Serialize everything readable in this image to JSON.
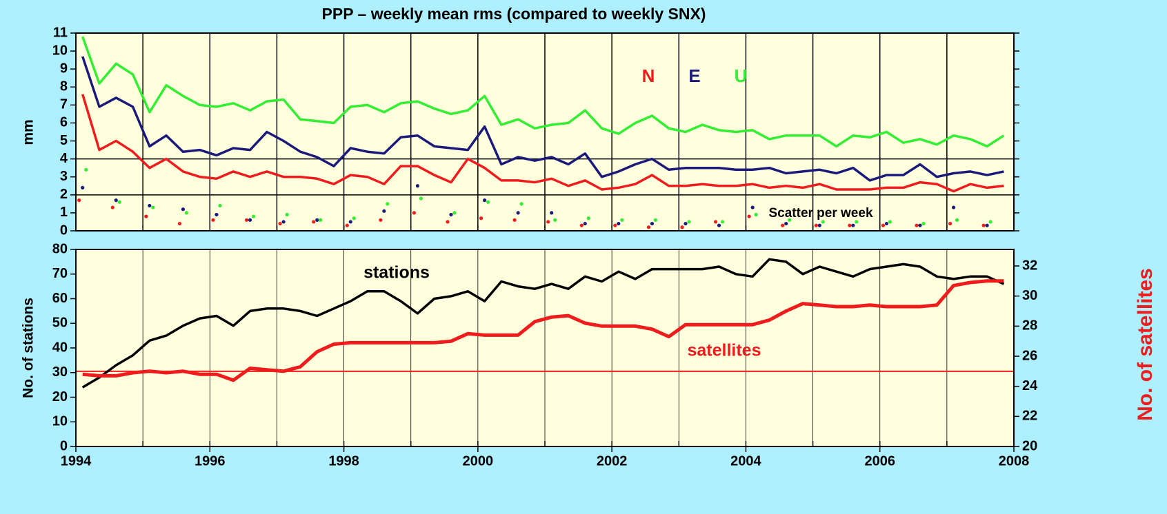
{
  "chart_data": [
    {
      "type": "line",
      "title": "PPP – weekly mean rms (compared to weekly SNX)",
      "ylabel": "mm",
      "xlim": [
        1994,
        2008
      ],
      "x_grid": [
        1994,
        1995,
        1996,
        1997,
        1998,
        1999,
        2000,
        2001,
        2002,
        2003,
        2004,
        2005,
        2006,
        2007,
        2008
      ],
      "ylim": [
        0,
        11
      ],
      "yticks": [
        0,
        1,
        2,
        3,
        4,
        5,
        6,
        7,
        8,
        9,
        10,
        11
      ],
      "hlines": [
        2,
        4
      ],
      "x": [
        1994.1,
        1994.35,
        1994.6,
        1994.85,
        1995.1,
        1995.35,
        1995.6,
        1995.85,
        1996.1,
        1996.35,
        1996.6,
        1996.85,
        1997.1,
        1997.35,
        1997.6,
        1997.85,
        1998.1,
        1998.35,
        1998.6,
        1998.85,
        1999.1,
        1999.35,
        1999.6,
        1999.85,
        2000.1,
        2000.35,
        2000.6,
        2000.85,
        2001.1,
        2001.35,
        2001.6,
        2001.85,
        2002.1,
        2002.35,
        2002.6,
        2002.85,
        2003.1,
        2003.35,
        2003.6,
        2003.85,
        2004.1,
        2004.35,
        2004.6,
        2004.85,
        2005.1,
        2005.35,
        2005.6,
        2005.85,
        2006.1,
        2006.35,
        2006.6,
        2006.85,
        2007.1,
        2007.35,
        2007.6,
        2007.85
      ],
      "series": [
        {
          "name": "N",
          "color": "#ee1c1c",
          "values": [
            7.6,
            4.5,
            5.0,
            4.4,
            3.5,
            4.0,
            3.3,
            3.0,
            2.9,
            3.3,
            3.0,
            3.3,
            3.0,
            3.0,
            2.9,
            2.6,
            3.1,
            3.0,
            2.6,
            3.6,
            3.6,
            3.1,
            2.7,
            4.0,
            3.5,
            2.8,
            2.8,
            2.7,
            2.9,
            2.5,
            2.8,
            2.3,
            2.4,
            2.6,
            3.1,
            2.5,
            2.5,
            2.6,
            2.5,
            2.5,
            2.6,
            2.4,
            2.5,
            2.4,
            2.6,
            2.3,
            2.3,
            2.3,
            2.4,
            2.4,
            2.7,
            2.6,
            2.2,
            2.6,
            2.4,
            2.5
          ]
        },
        {
          "name": "E",
          "color": "#1a1a7a",
          "values": [
            9.7,
            6.9,
            7.4,
            6.9,
            4.7,
            5.3,
            4.4,
            4.5,
            4.2,
            4.6,
            4.5,
            5.5,
            5.0,
            4.4,
            4.1,
            3.6,
            4.6,
            4.4,
            4.3,
            5.2,
            5.3,
            4.7,
            4.6,
            4.5,
            5.8,
            3.7,
            4.1,
            3.9,
            4.1,
            3.7,
            4.3,
            3.0,
            3.3,
            3.7,
            4.0,
            3.4,
            3.5,
            3.5,
            3.5,
            3.4,
            3.4,
            3.5,
            3.2,
            3.3,
            3.4,
            3.2,
            3.5,
            2.8,
            3.1,
            3.1,
            3.7,
            3.0,
            3.2,
            3.3,
            3.1,
            3.3
          ]
        },
        {
          "name": "U",
          "color": "#33ee33",
          "values": [
            10.8,
            8.2,
            9.3,
            8.7,
            6.6,
            8.1,
            7.5,
            7.0,
            6.9,
            7.1,
            6.7,
            7.2,
            7.3,
            6.2,
            6.1,
            6.0,
            6.9,
            7.0,
            6.6,
            7.1,
            7.2,
            6.8,
            6.5,
            6.7,
            7.5,
            5.9,
            6.2,
            5.7,
            5.9,
            6.0,
            6.7,
            5.7,
            5.4,
            6.0,
            6.4,
            5.7,
            5.5,
            5.9,
            5.6,
            5.5,
            5.6,
            5.1,
            5.3,
            5.3,
            5.3,
            4.7,
            5.3,
            5.2,
            5.5,
            4.9,
            5.1,
            4.8,
            5.3,
            5.1,
            4.7,
            5.3
          ]
        }
      ],
      "scatter": {
        "name": "Scatter per week",
        "x": [
          1994.1,
          1994.6,
          1995.1,
          1995.6,
          1996.1,
          1996.6,
          1997.1,
          1997.6,
          1998.1,
          1998.6,
          1999.1,
          1999.6,
          2000.1,
          2000.6,
          2001.1,
          2001.6,
          2002.1,
          2002.6,
          2003.1,
          2003.6,
          2004.1,
          2004.6,
          2005.1,
          2005.6,
          2006.1,
          2006.6,
          2007.1,
          2007.6
        ],
        "series": [
          {
            "color": "#ee1c1c",
            "values": [
              1.7,
              1.3,
              0.8,
              0.4,
              0.6,
              0.6,
              0.4,
              0.5,
              0.3,
              0.6,
              1.0,
              0.5,
              0.7,
              0.6,
              0.5,
              0.3,
              0.3,
              0.2,
              0.2,
              0.5,
              0.8,
              0.3,
              0.3,
              0.3,
              0.3,
              0.3,
              0.4,
              0.3
            ]
          },
          {
            "color": "#1a1a7a",
            "values": [
              2.4,
              1.7,
              1.4,
              1.2,
              0.9,
              0.6,
              0.5,
              0.6,
              0.5,
              1.1,
              2.5,
              0.9,
              1.7,
              1.0,
              1.0,
              0.4,
              0.4,
              0.4,
              0.4,
              0.3,
              1.3,
              0.4,
              0.3,
              0.3,
              0.4,
              0.3,
              1.3,
              0.3
            ]
          },
          {
            "color": "#33ee33",
            "values": [
              3.4,
              1.6,
              1.3,
              1.0,
              1.4,
              0.8,
              0.9,
              0.6,
              0.7,
              1.5,
              1.8,
              1.0,
              1.6,
              1.5,
              0.6,
              0.7,
              0.6,
              0.6,
              0.5,
              0.5,
              0.9,
              0.6,
              0.5,
              0.5,
              0.5,
              0.4,
              0.6,
              0.5
            ]
          }
        ]
      }
    },
    {
      "type": "line",
      "ylabel": "No. of stations",
      "y2label": "No. of satellites",
      "xlim": [
        1994,
        2008
      ],
      "x_grid": [
        1994,
        1995,
        1996,
        1997,
        1998,
        1999,
        2000,
        2001,
        2002,
        2003,
        2004,
        2005,
        2006,
        2007,
        2008
      ],
      "xticks": [
        1994,
        1996,
        1998,
        2000,
        2002,
        2004,
        2006,
        2008
      ],
      "ylim": [
        0,
        80
      ],
      "yticks": [
        0,
        10,
        20,
        30,
        40,
        50,
        60,
        70,
        80
      ],
      "y2lim": [
        20,
        33.1
      ],
      "y2ticks": [
        20,
        22,
        24,
        26,
        28,
        30,
        32
      ],
      "y2_reference_line": 25,
      "x": [
        1994.1,
        1994.35,
        1994.6,
        1994.85,
        1995.1,
        1995.35,
        1995.6,
        1995.85,
        1996.1,
        1996.35,
        1996.6,
        1996.85,
        1997.1,
        1997.35,
        1997.6,
        1997.85,
        1998.1,
        1998.35,
        1998.6,
        1998.85,
        1999.1,
        1999.35,
        1999.6,
        1999.85,
        2000.1,
        2000.35,
        2000.6,
        2000.85,
        2001.1,
        2001.35,
        2001.6,
        2001.85,
        2002.1,
        2002.35,
        2002.6,
        2002.85,
        2003.1,
        2003.35,
        2003.6,
        2003.85,
        2004.1,
        2004.35,
        2004.6,
        2004.85,
        2005.1,
        2005.35,
        2005.6,
        2005.85,
        2006.1,
        2006.35,
        2006.6,
        2006.85,
        2007.1,
        2007.35,
        2007.6,
        2007.85
      ],
      "series": [
        {
          "name": "stations",
          "color": "#000000",
          "values": [
            24,
            28,
            33,
            37,
            43,
            45,
            49,
            52,
            53,
            49,
            55,
            56,
            56,
            55,
            53,
            56,
            59,
            63,
            63,
            59,
            54,
            60,
            61,
            63,
            59,
            67,
            65,
            64,
            66,
            64,
            69,
            67,
            71,
            68,
            72,
            72,
            72,
            72,
            73,
            70,
            69,
            76,
            75,
            70,
            73,
            71,
            69,
            72,
            73,
            74,
            73,
            69,
            68,
            69,
            69,
            66
          ]
        },
        {
          "name": "satellites",
          "color": "#ee1c1c",
          "axis": "y2",
          "values": [
            24.8,
            24.7,
            24.7,
            24.9,
            25.0,
            24.9,
            25.0,
            24.8,
            24.8,
            24.4,
            25.2,
            25.1,
            25.0,
            25.3,
            26.3,
            26.8,
            26.9,
            26.9,
            26.9,
            26.9,
            26.9,
            26.9,
            27.0,
            27.5,
            27.4,
            27.4,
            27.4,
            28.3,
            28.6,
            28.7,
            28.2,
            28.0,
            28.0,
            28.0,
            27.8,
            27.3,
            28.1,
            28.1,
            28.1,
            28.1,
            28.1,
            28.4,
            29.0,
            29.5,
            29.4,
            29.3,
            29.3,
            29.4,
            29.3,
            29.3,
            29.3,
            29.4,
            30.7,
            30.9,
            31.0,
            31.0
          ]
        }
      ]
    }
  ]
}
